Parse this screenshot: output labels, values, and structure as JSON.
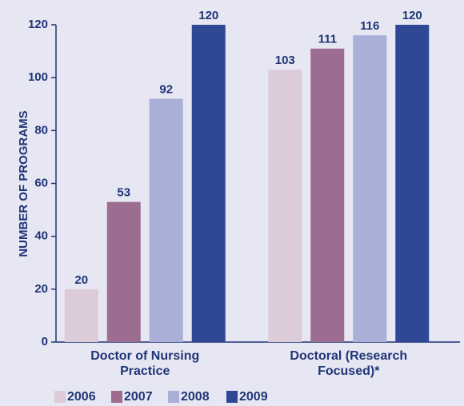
{
  "chart_data": {
    "type": "bar",
    "y_axis_label": "NUMBER OF PROGRAMS",
    "categories": [
      "Doctor of Nursing Practice",
      "Doctoral (Research Focused)*"
    ],
    "series": [
      {
        "name": "2006",
        "color": "#dccbd8",
        "values": [
          20,
          103
        ]
      },
      {
        "name": "2007",
        "color": "#9c6d91",
        "values": [
          53,
          111
        ]
      },
      {
        "name": "2008",
        "color": "#a9afd7",
        "values": [
          92,
          116
        ]
      },
      {
        "name": "2009",
        "color": "#2e4896",
        "values": [
          120,
          120
        ]
      }
    ],
    "ylim": [
      0,
      120
    ],
    "yticks": [
      0,
      20,
      40,
      60,
      80,
      100,
      120
    ],
    "legend": "bottom"
  }
}
